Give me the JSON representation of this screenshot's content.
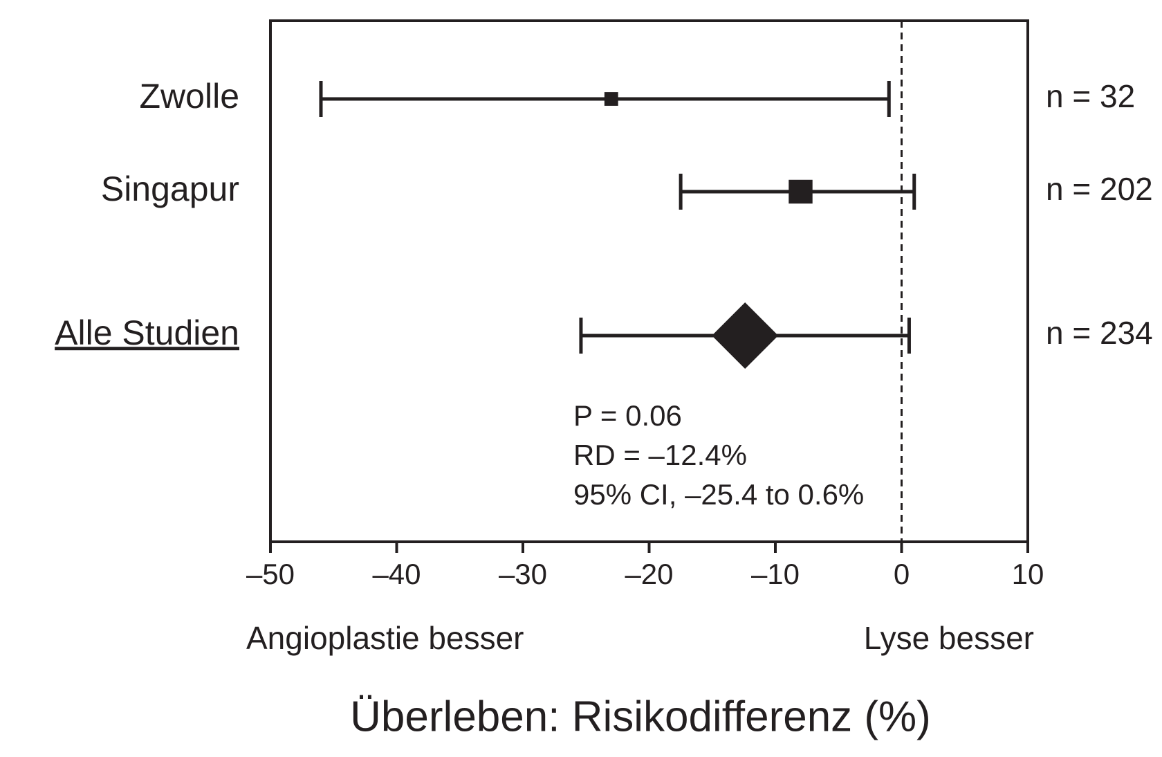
{
  "chart_data": {
    "type": "forest",
    "title": "Überleben: Risikodifferenz (%)",
    "left_annotation": "Angioplastie besser",
    "right_annotation": "Lyse besser",
    "categories": [
      "Zwolle",
      "Singapur",
      "Alle Studien"
    ],
    "estimates": [
      -23,
      -8,
      -12.4
    ],
    "lower": [
      -46,
      -17.5,
      -25.4
    ],
    "upper": [
      -1,
      1,
      0.6
    ],
    "n": [
      32,
      202,
      234
    ],
    "n_labels": [
      "n = 32",
      "n = 202",
      "n = 234"
    ],
    "pooled_index": 2,
    "color": "#231f20",
    "reference_line": 0,
    "notes": [
      "P = 0.06",
      "RD = –12.4%",
      "95% CI, –25.4 to 0.6%"
    ],
    "xlim": [
      -50,
      10
    ],
    "xticks": [
      {
        "value": -50,
        "label": "–50"
      },
      {
        "value": -40,
        "label": "–40"
      },
      {
        "value": -30,
        "label": "–30"
      },
      {
        "value": -20,
        "label": "–20"
      },
      {
        "value": -10,
        "label": "–10"
      },
      0,
      10
    ]
  }
}
